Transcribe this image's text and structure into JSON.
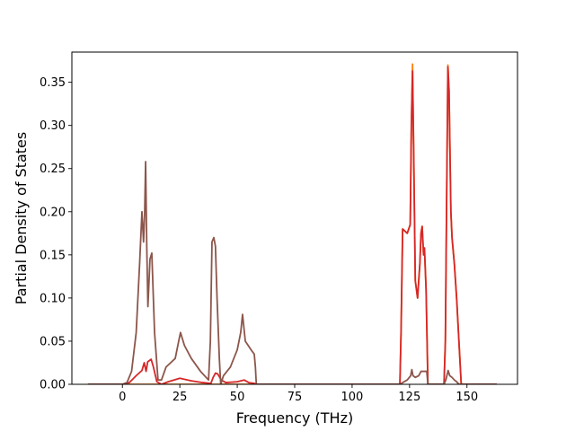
{
  "chart_data": {
    "type": "line",
    "title": "",
    "xlabel": "Frequency (THz)",
    "ylabel": "Partial Density of States",
    "xlim": [
      -22,
      172
    ],
    "ylim": [
      0,
      0.385
    ],
    "xticks": [
      "0",
      "25",
      "50",
      "75",
      "100",
      "125",
      "150"
    ],
    "yticks": [
      "0.00",
      "0.05",
      "0.10",
      "0.15",
      "0.20",
      "0.25",
      "0.30",
      "0.35"
    ],
    "grid": false,
    "series": [
      {
        "color": "#ff7f0e",
        "x": [
          -15,
          120.8,
          121.3,
          122,
          124,
          125.3,
          125.8,
          126.3,
          126.8,
          127.5,
          128.5,
          129.5,
          130,
          130.5,
          131.1,
          131.5,
          132.2,
          133,
          140,
          140.6,
          141.1,
          141.7,
          142.2,
          143,
          143.5,
          144.5,
          145.5,
          146.5,
          147.5,
          163
        ],
        "y": [
          0,
          0,
          0.06,
          0.18,
          0.175,
          0.185,
          0.3,
          0.371,
          0.27,
          0.12,
          0.1,
          0.14,
          0.175,
          0.183,
          0.15,
          0.158,
          0.11,
          0,
          0,
          0.05,
          0.2,
          0.37,
          0.34,
          0.2,
          0.17,
          0.14,
          0.1,
          0.05,
          0,
          0
        ]
      },
      {
        "color": "#d62728",
        "x": [
          -15,
          0,
          3,
          6,
          8.5,
          9.5,
          10.3,
          11,
          12.5,
          13.5,
          15,
          17,
          20,
          25,
          30,
          35,
          38.5,
          39.5,
          40.5,
          41.5,
          43,
          45,
          50,
          53,
          55,
          57.5,
          58.2,
          120.8,
          121.3,
          122,
          124,
          125.3,
          125.8,
          126.3,
          126.8,
          127.5,
          128.5,
          129.5,
          130,
          130.5,
          131.1,
          131.5,
          132.2,
          133,
          140,
          140.6,
          141.1,
          141.7,
          142.2,
          143,
          143.5,
          144.5,
          145.5,
          146.5,
          147.5,
          163
        ],
        "y": [
          0,
          0,
          0.002,
          0.01,
          0.016,
          0.025,
          0.015,
          0.026,
          0.029,
          0.02,
          0.003,
          0,
          0.003,
          0.007,
          0.004,
          0.002,
          0.001,
          0.008,
          0.013,
          0.012,
          0.005,
          0.002,
          0.003,
          0.005,
          0.002,
          0.001,
          0,
          0,
          0.06,
          0.18,
          0.175,
          0.185,
          0.3,
          0.363,
          0.27,
          0.12,
          0.1,
          0.14,
          0.175,
          0.183,
          0.15,
          0.158,
          0.11,
          0,
          0,
          0.05,
          0.2,
          0.368,
          0.34,
          0.2,
          0.17,
          0.14,
          0.1,
          0.05,
          0,
          0
        ]
      },
      {
        "color": "#8c564b",
        "x": [
          -15,
          0,
          2,
          4,
          6,
          7.5,
          8.5,
          9.2,
          9.7,
          10.1,
          10.6,
          11.1,
          12,
          12.8,
          14,
          15.5,
          17,
          19,
          21,
          23,
          24.5,
          25.3,
          27,
          30,
          34,
          37.5,
          38.3,
          39,
          39.8,
          40.5,
          41.2,
          42.2,
          42.8,
          44,
          47,
          50,
          51.5,
          52.3,
          53.5,
          56,
          57.4,
          57.9,
          58.3,
          120.8,
          122,
          124,
          125.5,
          126,
          126.5,
          127.5,
          129,
          130,
          130.5,
          131,
          132.5,
          133,
          140,
          140.8,
          141.8,
          142.5,
          143.5,
          144.5,
          145.5,
          146.5,
          163
        ],
        "y": [
          0,
          0,
          0.002,
          0.015,
          0.06,
          0.14,
          0.2,
          0.165,
          0.2,
          0.258,
          0.16,
          0.09,
          0.145,
          0.152,
          0.06,
          0.005,
          0.005,
          0.02,
          0.025,
          0.03,
          0.05,
          0.06,
          0.045,
          0.03,
          0.015,
          0.005,
          0.05,
          0.165,
          0.17,
          0.16,
          0.1,
          0.03,
          0,
          0.01,
          0.02,
          0.04,
          0.06,
          0.081,
          0.05,
          0.04,
          0.035,
          0.02,
          0,
          0,
          0.002,
          0.005,
          0.01,
          0.017,
          0.01,
          0.008,
          0.01,
          0.015,
          0.015,
          0.015,
          0.015,
          0,
          0,
          0.005,
          0.016,
          0.01,
          0.008,
          0.005,
          0.003,
          0,
          0
        ]
      }
    ]
  }
}
